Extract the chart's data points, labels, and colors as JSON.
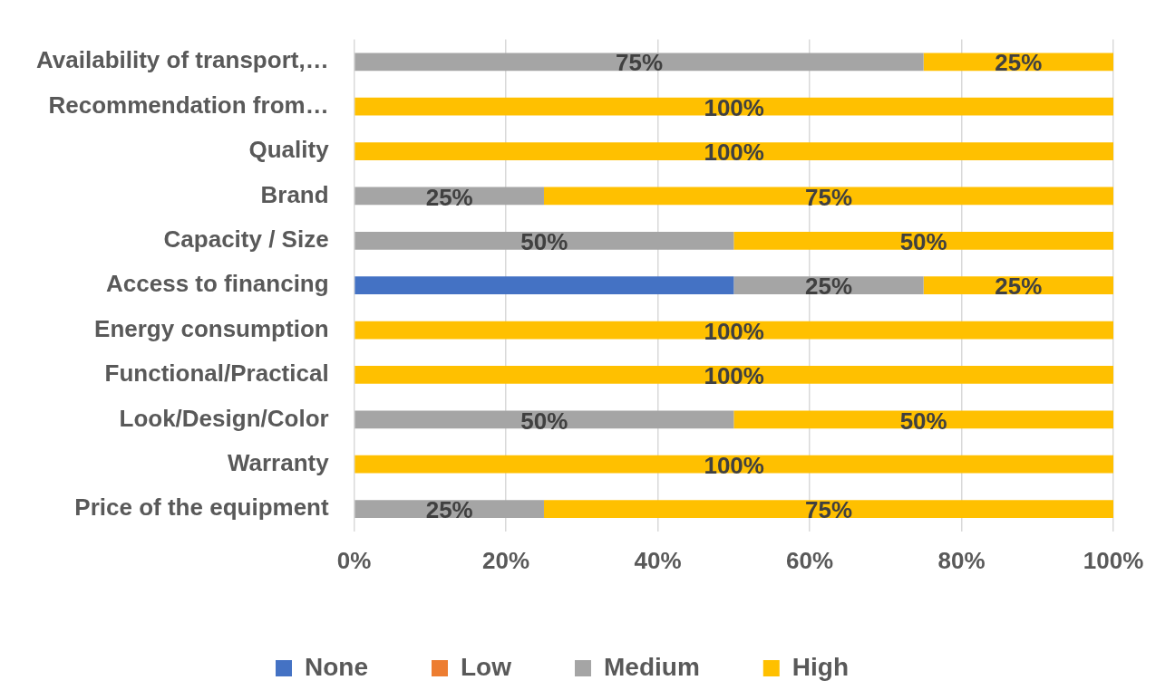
{
  "chart_data": {
    "type": "bar",
    "orientation": "horizontal",
    "stacked": true,
    "categories": [
      "Availability of transport,…",
      "Recommendation from…",
      "Quality",
      "Brand",
      "Capacity / Size",
      "Access to financing",
      "Energy consumption",
      "Functional/Practical",
      "Look/Design/Color",
      "Warranty",
      "Price of the equipment"
    ],
    "series": [
      {
        "name": "None",
        "color": "#4472c4",
        "values": [
          null,
          null,
          null,
          null,
          null,
          50,
          null,
          null,
          null,
          null,
          null
        ],
        "value_labels": [
          null,
          null,
          null,
          null,
          null,
          null,
          null,
          null,
          null,
          null,
          null
        ]
      },
      {
        "name": "Low",
        "color": "#ed7d31",
        "values": [
          null,
          null,
          null,
          null,
          null,
          null,
          null,
          null,
          null,
          null,
          null
        ],
        "value_labels": [
          null,
          null,
          null,
          null,
          null,
          null,
          null,
          null,
          null,
          null,
          null
        ]
      },
      {
        "name": "Medium",
        "color": "#a5a5a5",
        "values": [
          75,
          null,
          null,
          25,
          50,
          25,
          null,
          null,
          50,
          null,
          25
        ],
        "value_labels": [
          "75%",
          null,
          null,
          "25%",
          "50%",
          "25%",
          null,
          null,
          "50%",
          null,
          "25%"
        ]
      },
      {
        "name": "High",
        "color": "#ffc000",
        "values": [
          25,
          100,
          100,
          75,
          50,
          25,
          100,
          100,
          50,
          100,
          75
        ],
        "value_labels": [
          "25%",
          "100%",
          "100%",
          "75%",
          "50%",
          "25%",
          "100%",
          "100%",
          "50%",
          "100%",
          "75%"
        ]
      }
    ],
    "xlim": [
      0,
      100
    ],
    "xticks": [
      {
        "value": 0,
        "label": "0%"
      },
      {
        "value": 20,
        "label": "20%"
      },
      {
        "value": 40,
        "label": "40%"
      },
      {
        "value": 60,
        "label": "60%"
      },
      {
        "value": 80,
        "label": "80%"
      },
      {
        "value": 100,
        "label": "100%"
      }
    ],
    "grid": "x",
    "legend": "bottom"
  }
}
